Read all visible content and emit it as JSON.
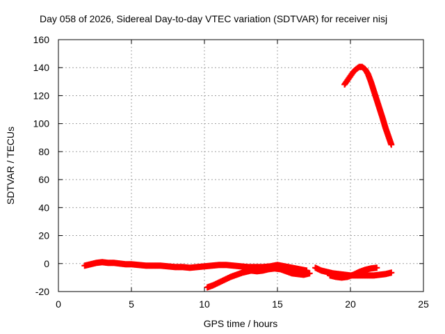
{
  "chart_data": {
    "type": "scatter",
    "title": "Day 058 of 2026, Sidereal Day-to-day VTEC variation (SDTVAR) for receiver nisj",
    "xlabel": "GPS time / hours",
    "ylabel": "SDTVAR / TECUs",
    "xlim": [
      0,
      25
    ],
    "ylim": [
      -20,
      160
    ],
    "xticks": [
      "0",
      "5",
      "10",
      "15",
      "20",
      "25"
    ],
    "yticks": [
      "-20",
      "0",
      "20",
      "40",
      "60",
      "80",
      "100",
      "120",
      "140",
      "160"
    ],
    "grid": true,
    "marker": "+",
    "series_color": "#ff0000",
    "series": [
      {
        "x": [
          1.8,
          2.2,
          2.6,
          3.0,
          3.4,
          3.8,
          4.2,
          4.6,
          5.0,
          5.5,
          6.0,
          6.5,
          7.0,
          7.5,
          8.0,
          8.5,
          9.0,
          9.5,
          10.0,
          10.5,
          11.0,
          11.5,
          12.0,
          12.5,
          13.0,
          13.5,
          14.0,
          14.5,
          15.0,
          15.5,
          16.0,
          16.5,
          17.0
        ],
        "y": [
          -1.5,
          -0.5,
          0.5,
          1.0,
          0.5,
          0.5,
          0.0,
          -0.5,
          -0.5,
          -1.0,
          -1.5,
          -1.5,
          -1.5,
          -2.0,
          -2.5,
          -2.5,
          -3.0,
          -2.5,
          -2.0,
          -1.5,
          -1.0,
          -1.0,
          -1.5,
          -2.0,
          -2.5,
          -2.5,
          -2.5,
          -2.0,
          -1.0,
          -2.0,
          -3.0,
          -4.0,
          -5.0
        ]
      },
      {
        "x": [
          10.2,
          10.6,
          11.0,
          11.4,
          11.8,
          12.2,
          12.6,
          13.0,
          13.4,
          13.8,
          14.2,
          14.6
        ],
        "y": [
          -17.0,
          -15.5,
          -13.5,
          -11.5,
          -9.5,
          -8.0,
          -6.5,
          -5.5,
          -4.5,
          -3.5,
          -3.0,
          -3.0
        ]
      },
      {
        "x": [
          12.8,
          13.2,
          13.6,
          14.0,
          14.4,
          14.8,
          15.2,
          15.6,
          16.0,
          16.4,
          16.8,
          17.2
        ],
        "y": [
          -4.0,
          -5.0,
          -5.5,
          -5.0,
          -4.0,
          -3.5,
          -4.0,
          -5.5,
          -7.0,
          -7.5,
          -8.0,
          -7.0
        ]
      },
      {
        "x": [
          17.6,
          18.0,
          18.4,
          18.8,
          19.2,
          19.6,
          20.0,
          20.4,
          20.8,
          21.2,
          21.6,
          22.0,
          22.4,
          22.8
        ],
        "y": [
          -3.0,
          -5.0,
          -6.0,
          -7.0,
          -7.5,
          -8.0,
          -8.5,
          -8.5,
          -8.5,
          -8.5,
          -8.5,
          -8.0,
          -7.5,
          -6.5
        ]
      },
      {
        "x": [
          18.6,
          19.0,
          19.4,
          19.8,
          20.2,
          20.6,
          21.0,
          21.4,
          21.8
        ],
        "y": [
          -8.5,
          -9.5,
          -10.0,
          -9.5,
          -8.0,
          -6.0,
          -4.5,
          -3.5,
          -3.0
        ]
      },
      {
        "x": [
          19.6,
          19.8,
          20.0,
          20.2,
          20.4,
          20.6,
          20.8,
          21.0,
          21.2,
          21.4,
          21.6,
          21.8,
          22.0,
          22.2,
          22.4,
          22.6,
          22.8
        ],
        "y": [
          128.0,
          131.0,
          134.0,
          137.0,
          139.0,
          140.5,
          140.5,
          139.0,
          135.5,
          130.0,
          123.5,
          117.0,
          110.5,
          104.0,
          97.0,
          91.0,
          85.0
        ]
      }
    ]
  }
}
